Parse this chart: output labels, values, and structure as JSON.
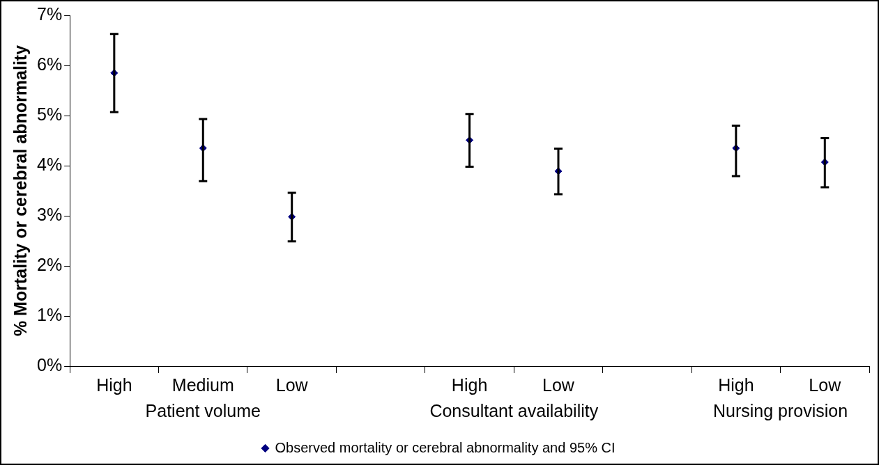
{
  "chart_data": {
    "type": "scatter",
    "ylabel": "% Mortality or cerebral abnormality",
    "categories": [
      "High",
      "Medium",
      "Low",
      null,
      "High",
      "Low",
      null,
      "High",
      "Low"
    ],
    "series": [
      {
        "name": "Observed mortality or cerebral abnormality and 95% CI",
        "color": "#000080",
        "values": [
          5.85,
          4.35,
          2.98,
          null,
          4.51,
          3.89,
          null,
          4.35,
          4.07
        ],
        "errors": [
          [
            5.07,
            6.63
          ],
          [
            3.69,
            4.93
          ],
          [
            2.49,
            3.46
          ],
          null,
          [
            3.98,
            5.03
          ],
          [
            3.43,
            4.34
          ],
          null,
          [
            3.79,
            4.8
          ],
          [
            3.57,
            4.55
          ]
        ]
      }
    ],
    "annotations": [
      "Patient volume",
      "Consultant availability",
      "Nursing provision"
    ],
    "ylim": [
      0,
      7
    ],
    "yticks": [
      {
        "value": 0,
        "label": "0%"
      },
      {
        "value": 1,
        "label": "1%"
      },
      {
        "value": 2,
        "label": "2%"
      },
      {
        "value": 3,
        "label": "3%"
      },
      {
        "value": 4,
        "label": "4%"
      },
      {
        "value": 5,
        "label": "5%"
      },
      {
        "value": 6,
        "label": "6%"
      },
      {
        "value": 7,
        "label": "7%"
      }
    ],
    "grid": false,
    "legend": "bottom",
    "marker": "diamond"
  }
}
